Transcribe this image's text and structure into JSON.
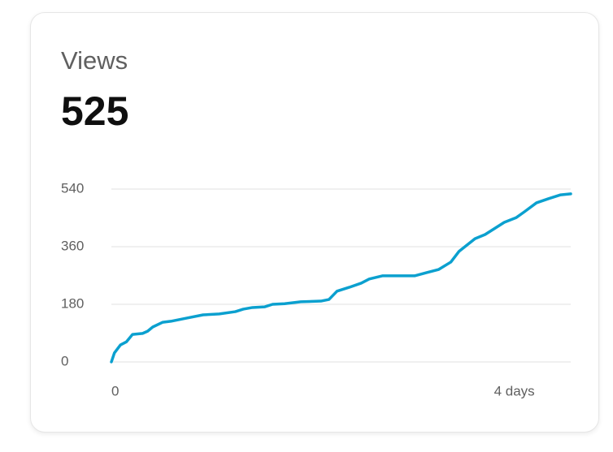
{
  "chart_data": {
    "type": "line",
    "title": "Views",
    "subtitle": "525",
    "x": [
      0,
      0.03,
      0.09,
      0.15,
      0.21,
      0.31,
      0.36,
      0.41,
      0.51,
      0.59,
      0.75,
      0.91,
      1.07,
      1.23,
      1.31,
      1.4,
      1.52,
      1.6,
      1.72,
      1.88,
      2.08,
      2.16,
      2.24,
      2.36,
      2.48,
      2.56,
      2.69,
      3.01,
      3.13,
      3.25,
      3.37,
      3.45,
      3.53,
      3.61,
      3.71,
      3.81,
      3.9,
      4.02,
      4.1,
      4.22,
      4.34,
      4.46,
      4.56
    ],
    "series": [
      {
        "name": "Views",
        "color": "#0ba0cf",
        "values": [
          0,
          28,
          53,
          63,
          86,
          89,
          96,
          109,
          124,
          127,
          137,
          147,
          150,
          157,
          165,
          170,
          172,
          180,
          182,
          188,
          190,
          195,
          221,
          233,
          246,
          259,
          269,
          269,
          279,
          289,
          312,
          345,
          365,
          385,
          398,
          418,
          436,
          451,
          469,
          497,
          510,
          522,
          525
        ]
      }
    ],
    "xlim": [
      0,
      4.56
    ],
    "xticks": [
      0,
      {
        "value": 4,
        "label": "4 days"
      }
    ],
    "ylim": [
      0,
      540
    ],
    "yticks": [
      0,
      180,
      360,
      540
    ],
    "grid": true
  }
}
